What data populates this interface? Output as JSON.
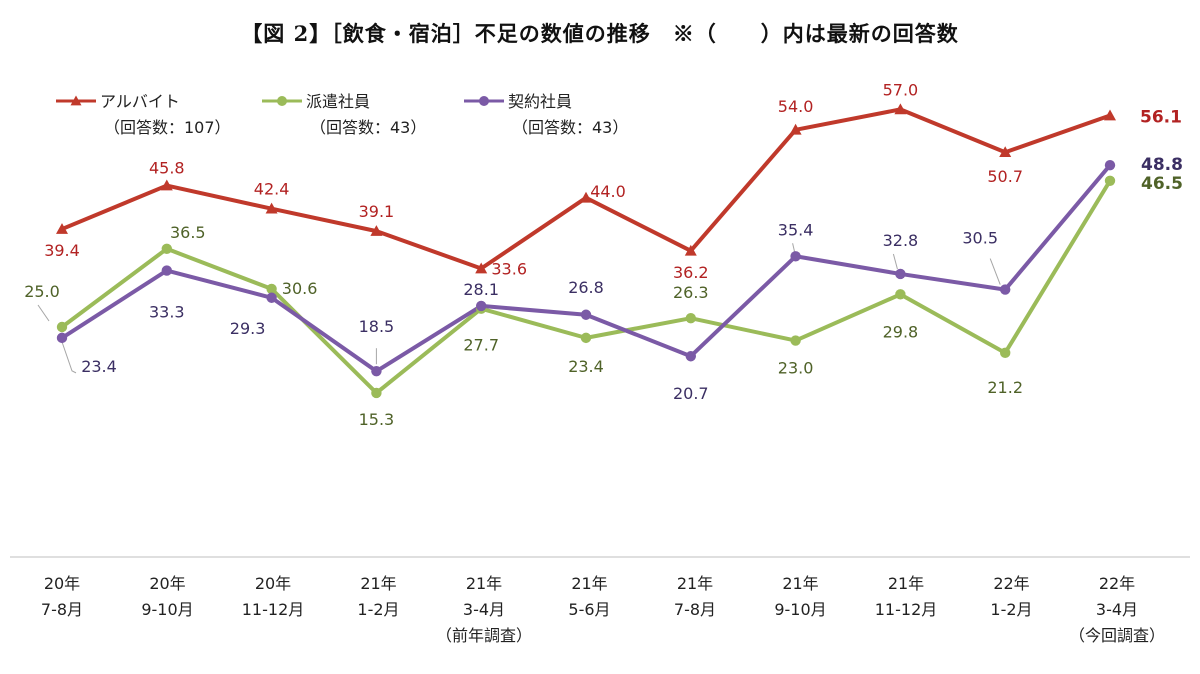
{
  "chart_data": {
    "type": "line",
    "title": "【図 2】［飲食・宿泊］不足の数値の推移　※（　　）内は最新の回答数",
    "categories": [
      {
        "year": "20年",
        "period": "7-8月",
        "note": ""
      },
      {
        "year": "20年",
        "period": "9-10月",
        "note": ""
      },
      {
        "year": "20年",
        "period": "11-12月",
        "note": ""
      },
      {
        "year": "21年",
        "period": "1-2月",
        "note": ""
      },
      {
        "year": "21年",
        "period": "3-4月",
        "note": "（前年調査）"
      },
      {
        "year": "21年",
        "period": "5-6月",
        "note": ""
      },
      {
        "year": "21年",
        "period": "7-8月",
        "note": ""
      },
      {
        "year": "21年",
        "period": "9-10月",
        "note": ""
      },
      {
        "year": "21年",
        "period": "11-12月",
        "note": ""
      },
      {
        "year": "22年",
        "period": "1-2月",
        "note": ""
      },
      {
        "year": "22年",
        "period": "3-4月",
        "note": "（今回調査）"
      }
    ],
    "series": [
      {
        "name": "アルバイト",
        "count_label": "（回答数：107）",
        "color": "#c0392b",
        "label_color": "#b22222",
        "marker": "triangle",
        "values": [
          39.4,
          45.8,
          42.4,
          39.1,
          33.6,
          44.0,
          36.2,
          54.0,
          57.0,
          50.7,
          56.1
        ],
        "labels": [
          "39.4",
          "45.8",
          "42.4",
          "39.1",
          "33.6",
          "44.0",
          "36.2",
          "54.0",
          "57.0",
          "50.7",
          "56.1"
        ]
      },
      {
        "name": "派遣社員",
        "count_label": "（回答数：43）",
        "color": "#9bbb59",
        "label_color": "#4f6228",
        "marker": "circle",
        "values": [
          25.0,
          36.5,
          30.6,
          15.3,
          27.7,
          23.4,
          26.3,
          23.0,
          29.8,
          21.2,
          46.5
        ],
        "labels": [
          "25.0",
          "36.5",
          "30.6",
          "15.3",
          "27.7",
          "23.4",
          "26.3",
          "23.0",
          "29.8",
          "21.2",
          "46.5"
        ]
      },
      {
        "name": "契約社員",
        "count_label": "（回答数：43）",
        "color": "#7b5aa6",
        "label_color": "#3b2f63",
        "marker": "circle",
        "values": [
          23.4,
          33.3,
          29.3,
          18.5,
          28.1,
          26.8,
          20.7,
          35.4,
          32.8,
          30.5,
          48.8
        ],
        "labels": [
          "23.4",
          "33.3",
          "29.3",
          "18.5",
          "28.1",
          "26.8",
          "20.7",
          "35.4",
          "32.8",
          "30.5",
          "48.8"
        ]
      }
    ],
    "xlabel": "",
    "ylabel": "",
    "grid": false,
    "legend_position": "top-left"
  }
}
